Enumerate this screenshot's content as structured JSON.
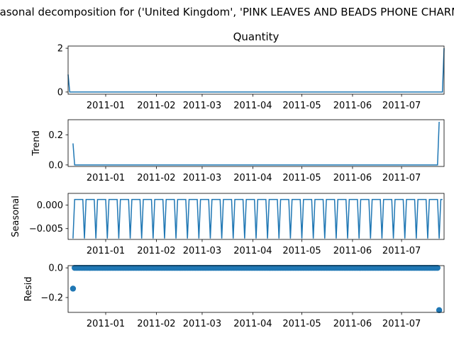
{
  "figure": {
    "suptitle": "Seasonal decomposition for ('United Kingdom', 'PINK LEAVES AND BEADS PHONE CHARM')",
    "line_color": "#1f77b4"
  },
  "chart_data": [
    {
      "type": "line",
      "title": "Quantity",
      "ylabel": "",
      "xlim": [
        "2010-12-09",
        "2011-07-27"
      ],
      "ylim": [
        -0.1,
        2.1
      ],
      "yticks": [
        0,
        2
      ],
      "ytick_labels": [
        "0",
        "2"
      ],
      "xticks": [
        "2011-01-01",
        "2011-02-01",
        "2011-03-01",
        "2011-04-01",
        "2011-05-01",
        "2011-06-01",
        "2011-07-01"
      ],
      "xtick_labels": [
        "2011-01",
        "2011-02",
        "2011-03",
        "2011-04",
        "2011-05",
        "2011-06",
        "2011-07"
      ],
      "points": [
        [
          "2010-12-09",
          0.8
        ],
        [
          "2010-12-10",
          0
        ],
        [
          "2011-07-26",
          0
        ],
        [
          "2011-07-27",
          2
        ]
      ]
    },
    {
      "type": "line",
      "title": "",
      "ylabel": "Trend",
      "xlim": [
        "2010-12-09",
        "2011-07-27"
      ],
      "ylim": [
        -0.01,
        0.3
      ],
      "yticks": [
        0.0,
        0.2
      ],
      "ytick_labels": [
        "0.0",
        "0.2"
      ],
      "xticks": [
        "2011-01-01",
        "2011-02-01",
        "2011-03-01",
        "2011-04-01",
        "2011-05-01",
        "2011-06-01",
        "2011-07-01"
      ],
      "xtick_labels": [
        "2011-01",
        "2011-02",
        "2011-03",
        "2011-04",
        "2011-05",
        "2011-06",
        "2011-07"
      ],
      "points": [
        [
          "2010-12-12",
          0.143
        ],
        [
          "2010-12-13",
          0
        ],
        [
          "2011-07-23",
          0
        ],
        [
          "2011-07-24",
          0.286
        ]
      ]
    },
    {
      "type": "line",
      "title": "",
      "ylabel": "Seasonal",
      "xlim": [
        "2010-12-09",
        "2011-07-27"
      ],
      "ylim": [
        -0.0073,
        0.0025
      ],
      "yticks": [
        -0.005,
        0.0
      ],
      "ytick_labels": [
        "−0.005",
        "0.000"
      ],
      "xticks": [
        "2011-01-01",
        "2011-02-01",
        "2011-03-01",
        "2011-04-01",
        "2011-05-01",
        "2011-06-01",
        "2011-07-01"
      ],
      "xtick_labels": [
        "2011-01",
        "2011-02",
        "2011-03",
        "2011-04",
        "2011-05",
        "2011-06",
        "2011-07"
      ],
      "period_days": 7,
      "pattern": [
        -0.0071,
        0.0012,
        0.0012,
        0.0012,
        0.0012,
        0.0012,
        0.0012
      ]
    },
    {
      "type": "scatter",
      "title": "",
      "ylabel": "Resid",
      "xlim": [
        "2010-12-09",
        "2011-07-27"
      ],
      "ylim": [
        -0.3,
        0.015
      ],
      "yticks": [
        -0.2,
        0.0
      ],
      "ytick_labels": [
        "−0.2",
        "0.0"
      ],
      "xticks": [
        "2011-01-01",
        "2011-02-01",
        "2011-03-01",
        "2011-04-01",
        "2011-05-01",
        "2011-06-01",
        "2011-07-01"
      ],
      "xtick_labels": [
        "2011-01",
        "2011-02",
        "2011-03",
        "2011-04",
        "2011-05",
        "2011-06",
        "2011-07"
      ],
      "points": [
        [
          "2010-12-12",
          -0.14
        ],
        [
          "2011-07-24",
          -0.285
        ]
      ],
      "zero_range": [
        "2010-12-13",
        "2011-07-23"
      ]
    }
  ]
}
